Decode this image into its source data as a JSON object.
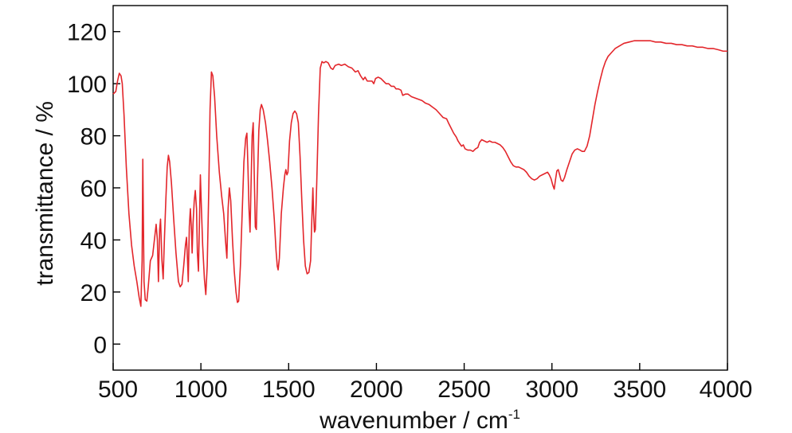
{
  "chart_data": {
    "type": "line",
    "title": "",
    "xlabel": "wavenumber / cm",
    "xlabel_superscript": "-1",
    "ylabel": "transmittance / %",
    "xlim": [
      500,
      4000
    ],
    "ylim": [
      -10,
      130
    ],
    "xticks": [
      500,
      1000,
      1500,
      2000,
      2500,
      3000,
      3500,
      4000
    ],
    "yticks": [
      0,
      20,
      40,
      60,
      80,
      100,
      120
    ],
    "grid": false,
    "line_color": "#e3262b",
    "series": [
      {
        "points": [
          [
            500,
            96
          ],
          [
            515,
            97
          ],
          [
            525,
            101
          ],
          [
            535,
            104
          ],
          [
            545,
            103
          ],
          [
            552,
            100
          ],
          [
            562,
            88
          ],
          [
            575,
            68
          ],
          [
            590,
            50
          ],
          [
            605,
            38
          ],
          [
            620,
            30
          ],
          [
            635,
            24
          ],
          [
            648,
            18
          ],
          [
            658,
            14.5
          ],
          [
            665,
            32
          ],
          [
            669,
            71
          ],
          [
            672,
            50
          ],
          [
            676,
            24
          ],
          [
            683,
            17
          ],
          [
            692,
            16.5
          ],
          [
            700,
            22
          ],
          [
            712,
            32
          ],
          [
            725,
            34
          ],
          [
            735,
            40
          ],
          [
            745,
            46
          ],
          [
            752,
            40
          ],
          [
            758,
            24
          ],
          [
            765,
            44
          ],
          [
            770,
            48
          ],
          [
            778,
            32
          ],
          [
            785,
            25
          ],
          [
            792,
            40
          ],
          [
            800,
            55
          ],
          [
            808,
            68
          ],
          [
            815,
            72.5
          ],
          [
            822,
            70
          ],
          [
            832,
            62
          ],
          [
            845,
            48
          ],
          [
            858,
            35
          ],
          [
            872,
            24
          ],
          [
            882,
            22
          ],
          [
            892,
            23
          ],
          [
            902,
            30
          ],
          [
            912,
            38
          ],
          [
            918,
            41
          ],
          [
            924,
            32
          ],
          [
            928,
            24
          ],
          [
            934,
            45
          ],
          [
            940,
            52
          ],
          [
            946,
            44
          ],
          [
            950,
            35
          ],
          [
            955,
            46
          ],
          [
            962,
            55
          ],
          [
            968,
            59
          ],
          [
            975,
            52
          ],
          [
            980,
            35
          ],
          [
            986,
            28
          ],
          [
            992,
            48
          ],
          [
            997,
            65
          ],
          [
            1003,
            52
          ],
          [
            1010,
            38
          ],
          [
            1020,
            25
          ],
          [
            1028,
            19
          ],
          [
            1036,
            30
          ],
          [
            1045,
            60
          ],
          [
            1052,
            90
          ],
          [
            1060,
            104.5
          ],
          [
            1068,
            103
          ],
          [
            1078,
            95
          ],
          [
            1090,
            80
          ],
          [
            1105,
            66
          ],
          [
            1118,
            57
          ],
          [
            1130,
            50
          ],
          [
            1140,
            40
          ],
          [
            1148,
            33
          ],
          [
            1155,
            52
          ],
          [
            1162,
            60
          ],
          [
            1170,
            55
          ],
          [
            1180,
            40
          ],
          [
            1190,
            28
          ],
          [
            1200,
            20
          ],
          [
            1208,
            16
          ],
          [
            1215,
            16.5
          ],
          [
            1225,
            30
          ],
          [
            1235,
            50
          ],
          [
            1245,
            70
          ],
          [
            1255,
            79
          ],
          [
            1262,
            81
          ],
          [
            1268,
            68
          ],
          [
            1274,
            52
          ],
          [
            1280,
            43
          ],
          [
            1286,
            62
          ],
          [
            1292,
            80
          ],
          [
            1298,
            85
          ],
          [
            1304,
            65
          ],
          [
            1310,
            45
          ],
          [
            1316,
            44
          ],
          [
            1322,
            62
          ],
          [
            1330,
            82
          ],
          [
            1338,
            90
          ],
          [
            1345,
            92
          ],
          [
            1355,
            90
          ],
          [
            1368,
            85
          ],
          [
            1380,
            78
          ],
          [
            1392,
            70
          ],
          [
            1405,
            60
          ],
          [
            1418,
            48
          ],
          [
            1428,
            36
          ],
          [
            1435,
            30
          ],
          [
            1440,
            28.5
          ],
          [
            1447,
            33
          ],
          [
            1458,
            50
          ],
          [
            1470,
            60
          ],
          [
            1478,
            65
          ],
          [
            1484,
            67
          ],
          [
            1490,
            65
          ],
          [
            1496,
            66
          ],
          [
            1505,
            78
          ],
          [
            1515,
            85
          ],
          [
            1525,
            88.5
          ],
          [
            1535,
            89.5
          ],
          [
            1545,
            88.5
          ],
          [
            1555,
            85
          ],
          [
            1565,
            72
          ],
          [
            1575,
            55
          ],
          [
            1585,
            40
          ],
          [
            1595,
            30
          ],
          [
            1605,
            27
          ],
          [
            1615,
            27.5
          ],
          [
            1625,
            32
          ],
          [
            1632,
            48
          ],
          [
            1638,
            60
          ],
          [
            1642,
            50
          ],
          [
            1647,
            43
          ],
          [
            1652,
            44
          ],
          [
            1660,
            62
          ],
          [
            1670,
            88
          ],
          [
            1680,
            106
          ],
          [
            1690,
            108.5
          ],
          [
            1700,
            108
          ],
          [
            1712,
            108.5
          ],
          [
            1725,
            108
          ],
          [
            1740,
            106
          ],
          [
            1752,
            105.5
          ],
          [
            1765,
            107
          ],
          [
            1785,
            107.5
          ],
          [
            1800,
            107
          ],
          [
            1820,
            107.5
          ],
          [
            1840,
            106.5
          ],
          [
            1860,
            106
          ],
          [
            1880,
            104.5
          ],
          [
            1895,
            105
          ],
          [
            1910,
            103
          ],
          [
            1925,
            101.5
          ],
          [
            1935,
            102.5
          ],
          [
            1948,
            101
          ],
          [
            1960,
            101
          ],
          [
            1975,
            101
          ],
          [
            1985,
            100
          ],
          [
            1995,
            102
          ],
          [
            2010,
            102.5
          ],
          [
            2025,
            102
          ],
          [
            2040,
            101
          ],
          [
            2055,
            100
          ],
          [
            2070,
            100
          ],
          [
            2085,
            99
          ],
          [
            2100,
            99
          ],
          [
            2112,
            98
          ],
          [
            2125,
            98
          ],
          [
            2140,
            97.5
          ],
          [
            2150,
            95.5
          ],
          [
            2165,
            96
          ],
          [
            2180,
            96
          ],
          [
            2200,
            95
          ],
          [
            2220,
            94.5
          ],
          [
            2240,
            94
          ],
          [
            2260,
            93.5
          ],
          [
            2280,
            92.5
          ],
          [
            2300,
            92
          ],
          [
            2320,
            91
          ],
          [
            2340,
            90
          ],
          [
            2360,
            88.5
          ],
          [
            2380,
            87
          ],
          [
            2400,
            86.5
          ],
          [
            2410,
            85
          ],
          [
            2425,
            83
          ],
          [
            2440,
            81
          ],
          [
            2455,
            79.5
          ],
          [
            2465,
            78
          ],
          [
            2475,
            77
          ],
          [
            2485,
            76
          ],
          [
            2495,
            76.5
          ],
          [
            2505,
            75
          ],
          [
            2520,
            74.5
          ],
          [
            2535,
            74.5
          ],
          [
            2550,
            74
          ],
          [
            2565,
            75
          ],
          [
            2578,
            75.5
          ],
          [
            2588,
            77.5
          ],
          [
            2600,
            78.5
          ],
          [
            2615,
            78
          ],
          [
            2630,
            77.5
          ],
          [
            2645,
            78
          ],
          [
            2660,
            77.5
          ],
          [
            2675,
            77.5
          ],
          [
            2690,
            77
          ],
          [
            2705,
            76.5
          ],
          [
            2720,
            75.5
          ],
          [
            2735,
            74
          ],
          [
            2750,
            72
          ],
          [
            2765,
            70
          ],
          [
            2780,
            68.5
          ],
          [
            2795,
            68
          ],
          [
            2810,
            68
          ],
          [
            2825,
            67.5
          ],
          [
            2840,
            67
          ],
          [
            2855,
            66
          ],
          [
            2870,
            64.5
          ],
          [
            2885,
            63.5
          ],
          [
            2900,
            63
          ],
          [
            2915,
            63.5
          ],
          [
            2930,
            64.5
          ],
          [
            2945,
            65
          ],
          [
            2960,
            65.5
          ],
          [
            2975,
            66
          ],
          [
            2985,
            65
          ],
          [
            2995,
            63.5
          ],
          [
            3005,
            61
          ],
          [
            3013,
            59.5
          ],
          [
            3020,
            63
          ],
          [
            3028,
            66.5
          ],
          [
            3036,
            67
          ],
          [
            3044,
            65
          ],
          [
            3052,
            63
          ],
          [
            3062,
            62.5
          ],
          [
            3072,
            64
          ],
          [
            3085,
            67
          ],
          [
            3100,
            70
          ],
          [
            3115,
            73
          ],
          [
            3130,
            74.5
          ],
          [
            3145,
            75
          ],
          [
            3160,
            74.5
          ],
          [
            3172,
            74
          ],
          [
            3185,
            74
          ],
          [
            3200,
            76
          ],
          [
            3215,
            80
          ],
          [
            3230,
            86
          ],
          [
            3245,
            92
          ],
          [
            3260,
            97
          ],
          [
            3275,
            101.5
          ],
          [
            3290,
            105.5
          ],
          [
            3305,
            108.5
          ],
          [
            3320,
            110.5
          ],
          [
            3340,
            112
          ],
          [
            3360,
            113.5
          ],
          [
            3385,
            114.5
          ],
          [
            3410,
            115.5
          ],
          [
            3440,
            116
          ],
          [
            3470,
            116.5
          ],
          [
            3500,
            116.5
          ],
          [
            3530,
            116.5
          ],
          [
            3560,
            116.5
          ],
          [
            3590,
            116
          ],
          [
            3620,
            116
          ],
          [
            3650,
            115.5
          ],
          [
            3680,
            115.5
          ],
          [
            3710,
            115
          ],
          [
            3740,
            115
          ],
          [
            3770,
            114.5
          ],
          [
            3800,
            114.5
          ],
          [
            3830,
            114
          ],
          [
            3860,
            114
          ],
          [
            3890,
            113.5
          ],
          [
            3920,
            113.5
          ],
          [
            3950,
            113
          ],
          [
            3975,
            112.5
          ],
          [
            4000,
            112.5
          ]
        ]
      }
    ]
  }
}
